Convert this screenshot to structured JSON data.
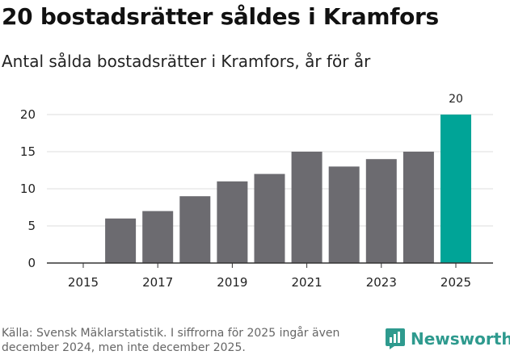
{
  "title": "20 bostadsrätter såldes i Kramfors",
  "subtitle": "Antal sålda bostadsrätter i Kramfors, år för år",
  "source": "Källa: Svensk Mäklarstatistik. I siffrorna för 2025 ingår även december 2024, men inte december 2025.",
  "brand": {
    "name": "Newsworthy",
    "color": "#2e9a8e"
  },
  "colors": {
    "bar": "#6c6b70",
    "highlight": "#00a497",
    "grid": "#dddddd",
    "axis": "#333333"
  },
  "chart_data": {
    "type": "bar",
    "categories": [
      2015,
      2016,
      2017,
      2018,
      2019,
      2020,
      2021,
      2022,
      2023,
      2024,
      2025
    ],
    "values": [
      0,
      6,
      7,
      9,
      11,
      12,
      15,
      13,
      14,
      15,
      20
    ],
    "highlight_category": 2025,
    "data_labels": [
      {
        "category": 2025,
        "text": "20"
      }
    ],
    "xticks": [
      "2015",
      "2017",
      "2019",
      "2021",
      "2023",
      "2025"
    ],
    "yticks": [
      0,
      5,
      10,
      15,
      20
    ],
    "ylim": [
      0,
      20
    ],
    "title": "20 bostadsrätter såldes i Kramfors",
    "xlabel": "",
    "ylabel": "",
    "grid": true
  }
}
